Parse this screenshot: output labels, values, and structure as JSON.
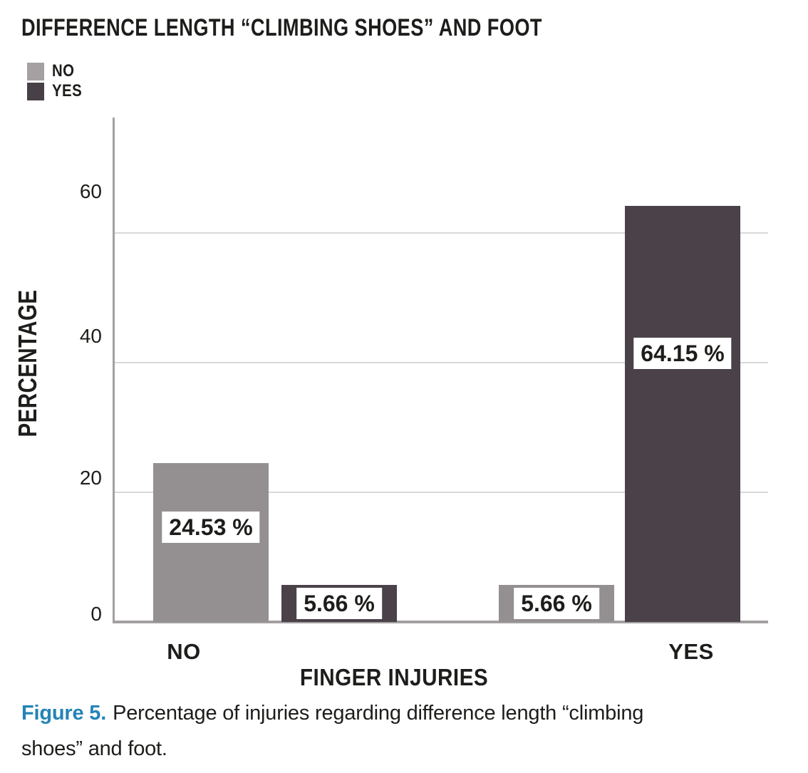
{
  "figure": {
    "title": "DIFFERENCE LENGTH “CLIMBING SHOES” AND FOOT",
    "caption": {
      "label": "Figure 5.",
      "line1": "Percentage of injuries regarding difference length “climbing",
      "line2": "shoes” and foot."
    }
  },
  "legend": {
    "items": [
      {
        "label": "NO",
        "color": "#a5a1a2"
      },
      {
        "label": "YES",
        "color": "#474046"
      }
    ]
  },
  "chart_data": {
    "type": "bar",
    "title": "DIFFERENCE LENGTH “CLIMBING SHOES” AND FOOT",
    "categories": [
      "NO",
      "YES"
    ],
    "xlabel": "FINGER INJURIES",
    "ylabel": "PERCENTAGE",
    "ylim": [
      0,
      78
    ],
    "yticks": [
      0,
      20,
      40,
      60
    ],
    "grid": true,
    "legend_position": "top-left",
    "series": [
      {
        "name": "NO",
        "color": "#949091",
        "values": [
          24.53,
          5.66
        ],
        "data_labels": [
          "24.53 %",
          "5.66 %"
        ],
        "label_y": [
          14.6,
          2.9
        ]
      },
      {
        "name": "YES",
        "color": "#4a4149",
        "values": [
          5.66,
          64.15
        ],
        "data_labels": [
          "5.66 %",
          "64.15 %"
        ],
        "label_y": [
          2.9,
          41.4
        ]
      }
    ],
    "colors": {
      "grid": "#d9d9d9",
      "axis": "#a3a0a0",
      "text": "#1d1d1b",
      "caption_accent": "#2484b6"
    }
  }
}
